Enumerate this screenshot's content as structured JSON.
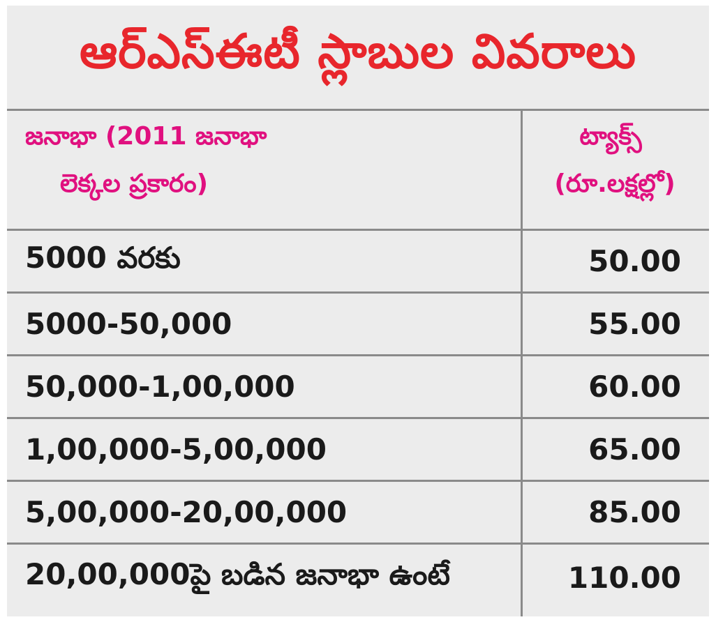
{
  "title": "ఆర్‌ఎస్‌ఈటీ స్లాబుల వివరాలు",
  "header": {
    "population_line1": "జనాభా (2011 జనాభా",
    "population_line2": "లెక్కల ప్రకారం)",
    "tax_line1": "ట్యాక్స్",
    "tax_line2": "(రూ.లక్షల్లో)"
  },
  "rows": [
    {
      "population": "5000 వరకు",
      "tax": "50.00"
    },
    {
      "population": "5000-50,000",
      "tax": "55.00"
    },
    {
      "population": "50,000-1,00,000",
      "tax": "60.00"
    },
    {
      "population": "1,00,000-5,00,000",
      "tax": "65.00"
    },
    {
      "population": "5,00,000-20,00,000",
      "tax": "85.00"
    },
    {
      "population": "20,00,000పై బడిన జనాభా ఉంటే",
      "tax": "110.00"
    }
  ],
  "colors": {
    "title": "#e8262c",
    "header": "#e0107f",
    "body_text": "#1a1a1a",
    "background": "#ececec",
    "rule": "#8a8a8a"
  }
}
